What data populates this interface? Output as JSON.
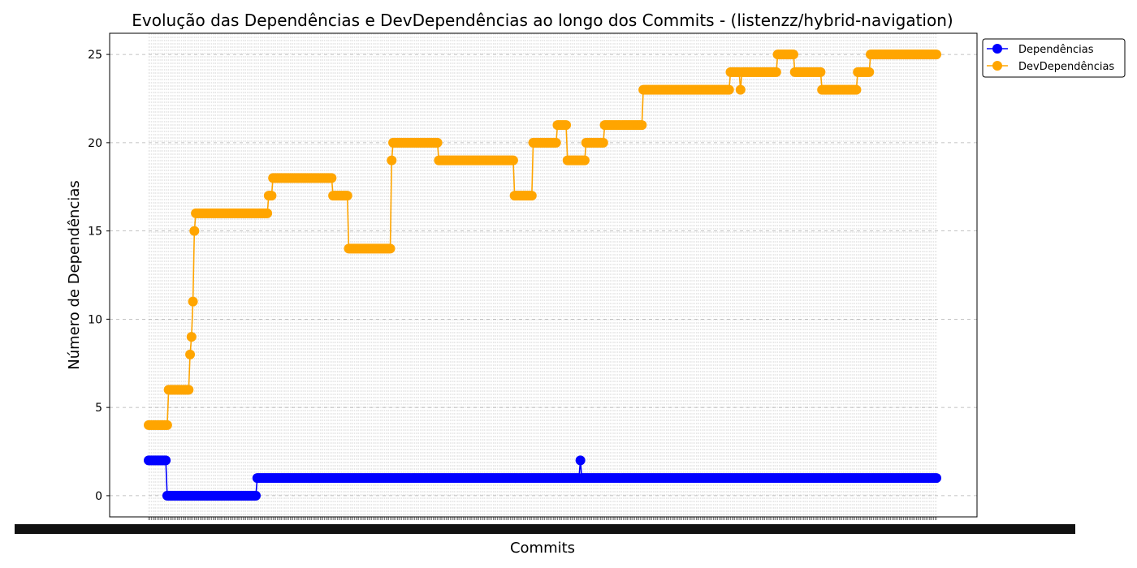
{
  "chart_data": {
    "type": "line",
    "title": "Evolução das Dependências e DevDependências ao longo dos Commits - (listenzz/hybrid-navigation)",
    "xlabel": "Commits",
    "ylabel": "Número de Dependências",
    "ylim": [
      -1.2,
      26.2
    ],
    "yticks": [
      0,
      5,
      10,
      15,
      20,
      25
    ],
    "commit_count": 552,
    "x_range": [
      0,
      551
    ],
    "grid": true,
    "legend_position": "outside top-right",
    "series": [
      {
        "name": "Dependências",
        "color": "#0000ff",
        "points": [
          [
            0,
            2
          ],
          [
            12,
            2
          ],
          [
            13,
            0
          ],
          [
            75,
            0
          ],
          [
            76,
            1
          ],
          [
            301,
            1
          ],
          [
            302,
            2
          ],
          [
            303,
            1
          ],
          [
            551,
            1
          ]
        ]
      },
      {
        "name": "DevDependências",
        "color": "#ffa500",
        "points": [
          [
            0,
            4
          ],
          [
            13,
            4
          ],
          [
            14,
            6
          ],
          [
            28,
            6
          ],
          [
            29,
            8
          ],
          [
            30,
            9
          ],
          [
            31,
            11
          ],
          [
            32,
            15
          ],
          [
            33,
            16
          ],
          [
            83,
            16
          ],
          [
            84,
            17
          ],
          [
            86,
            17
          ],
          [
            87,
            18
          ],
          [
            128,
            18
          ],
          [
            129,
            17
          ],
          [
            139,
            17
          ],
          [
            140,
            14
          ],
          [
            169,
            14
          ],
          [
            170,
            19
          ],
          [
            171,
            20
          ],
          [
            202,
            20
          ],
          [
            203,
            19
          ],
          [
            255,
            19
          ],
          [
            256,
            17
          ],
          [
            268,
            17
          ],
          [
            269,
            20
          ],
          [
            285,
            20
          ],
          [
            286,
            21
          ],
          [
            292,
            21
          ],
          [
            293,
            19
          ],
          [
            305,
            19
          ],
          [
            306,
            20
          ],
          [
            318,
            20
          ],
          [
            319,
            21
          ],
          [
            345,
            21
          ],
          [
            346,
            23
          ],
          [
            406,
            23
          ],
          [
            407,
            24
          ],
          [
            413,
            24
          ],
          [
            414,
            23
          ],
          [
            415,
            24
          ],
          [
            439,
            24
          ],
          [
            440,
            25
          ],
          [
            451,
            25
          ],
          [
            452,
            24
          ],
          [
            470,
            24
          ],
          [
            471,
            23
          ],
          [
            495,
            23
          ],
          [
            496,
            24
          ],
          [
            504,
            24
          ],
          [
            505,
            25
          ],
          [
            551,
            25
          ]
        ]
      }
    ]
  }
}
